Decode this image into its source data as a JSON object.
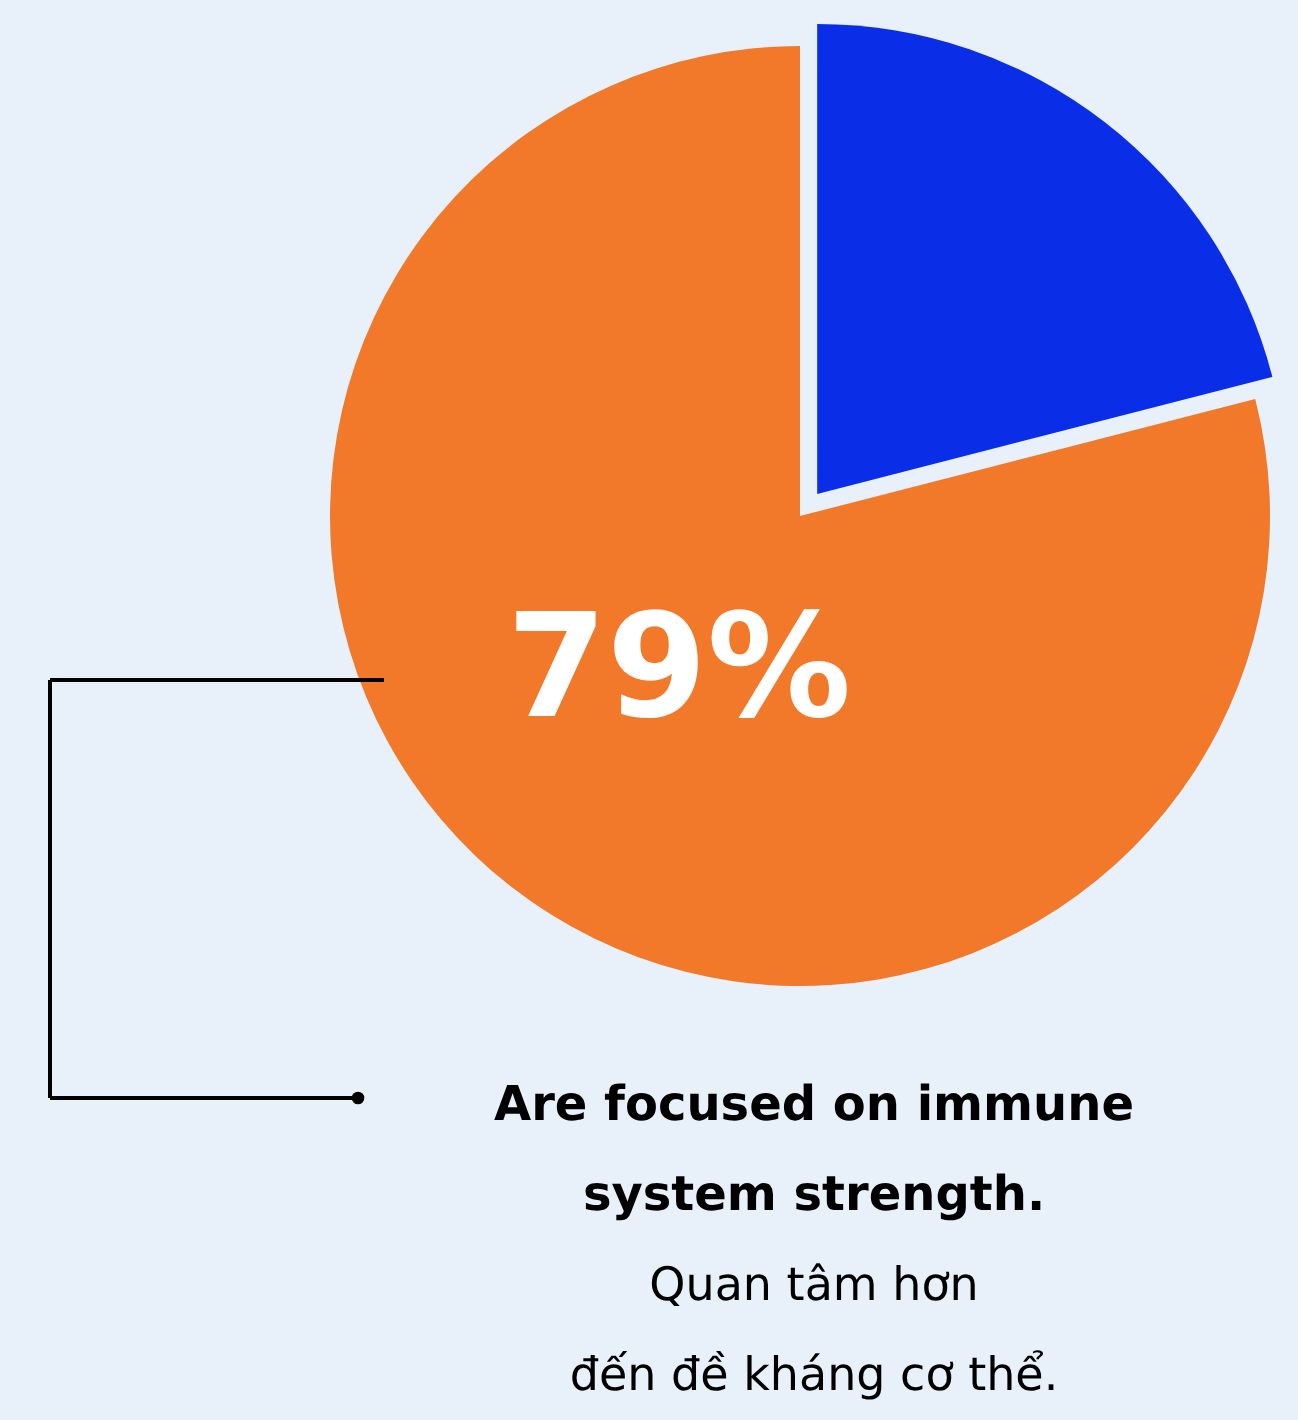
{
  "chart_data": {
    "type": "pie",
    "categories": [
      null,
      null
    ],
    "values": [
      21,
      79
    ],
    "colors": [
      "#0a2ee8",
      "#f2782a"
    ],
    "value_labels": [
      null,
      "79%"
    ],
    "annotations": [
      "Are focused on immune system strength.",
      "Quan tâm hơn đến đề kháng cơ thể."
    ]
  }
}
